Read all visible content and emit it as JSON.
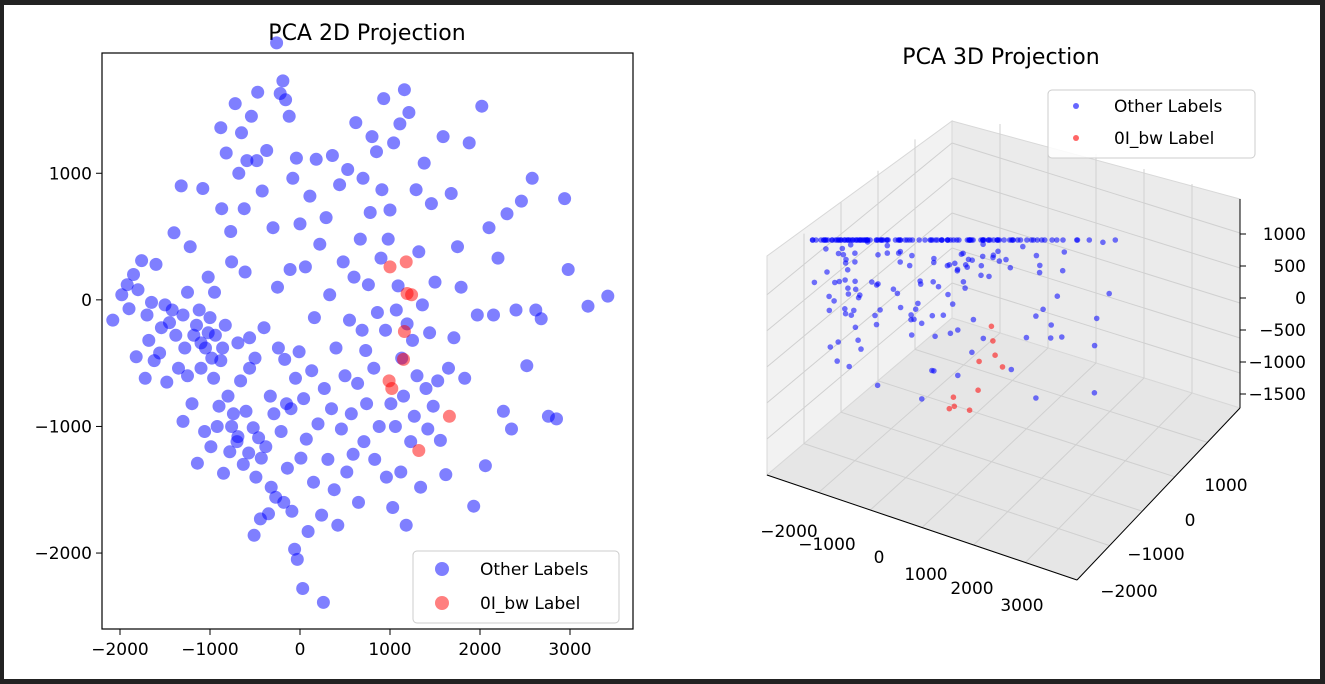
{
  "colors": {
    "other": "#0000ff",
    "label": "#ff0000"
  },
  "chart_data": [
    {
      "type": "scatter",
      "title": "PCA 2D Projection",
      "xlim": [
        -2200,
        3700
      ],
      "ylim": [
        -2600,
        1950
      ],
      "xticks": [
        -2000,
        -1000,
        0,
        1000,
        2000,
        3000
      ],
      "yticks": [
        -2000,
        -1000,
        0,
        1000
      ],
      "xtick_labels": [
        "−2000",
        "−1000",
        "0",
        "1000",
        "2000",
        "3000"
      ],
      "ytick_labels": [
        "−2000",
        "−1000",
        "0",
        "1000"
      ],
      "legend": {
        "position": "lower-right",
        "entries": [
          "Other Labels",
          "0I_bw Label"
        ]
      },
      "grid": false,
      "series": [
        {
          "name": "Other Labels",
          "color": "#0000ff",
          "alpha": 0.5,
          "points": [
            [
              -2080,
              -160
            ],
            [
              -1980,
              40
            ],
            [
              -1920,
              120
            ],
            [
              -1850,
              200
            ],
            [
              -1820,
              -450
            ],
            [
              -1800,
              80
            ],
            [
              -1760,
              310
            ],
            [
              -1720,
              -620
            ],
            [
              -1700,
              -120
            ],
            [
              -1680,
              -320
            ],
            [
              -1650,
              -20
            ],
            [
              -1620,
              -480
            ],
            [
              -1600,
              280
            ],
            [
              -1560,
              -420
            ],
            [
              -1540,
              -220
            ],
            [
              -1500,
              -40
            ],
            [
              -1480,
              -650
            ],
            [
              -1450,
              -180
            ],
            [
              -1420,
              -80
            ],
            [
              -1400,
              530
            ],
            [
              -1380,
              -280
            ],
            [
              -1350,
              -540
            ],
            [
              -1320,
              900
            ],
            [
              -1300,
              -960
            ],
            [
              -1300,
              -120
            ],
            [
              -1280,
              -380
            ],
            [
              -1250,
              60
            ],
            [
              -1220,
              420
            ],
            [
              -1200,
              -820
            ],
            [
              -1180,
              -280
            ],
            [
              -1150,
              -200
            ],
            [
              -1140,
              -1290
            ],
            [
              -1120,
              -80
            ],
            [
              -1100,
              -540
            ],
            [
              -1080,
              880
            ],
            [
              -1060,
              -1040
            ],
            [
              -1050,
              -380
            ],
            [
              -1020,
              -260
            ],
            [
              -1000,
              -140
            ],
            [
              -990,
              -1160
            ],
            [
              -980,
              -460
            ],
            [
              -960,
              -620
            ],
            [
              -940,
              -280
            ],
            [
              -920,
              -1000
            ],
            [
              -900,
              -840
            ],
            [
              -880,
              1360
            ],
            [
              -870,
              720
            ],
            [
              -860,
              -380
            ],
            [
              -850,
              -1370
            ],
            [
              -830,
              -200
            ],
            [
              -820,
              1160
            ],
            [
              -800,
              -760
            ],
            [
              -780,
              -1200
            ],
            [
              -770,
              540
            ],
            [
              -760,
              -1000
            ],
            [
              -740,
              -900
            ],
            [
              -720,
              1550
            ],
            [
              -700,
              -1120
            ],
            [
              -690,
              -340
            ],
            [
              -680,
              1000
            ],
            [
              -660,
              -640
            ],
            [
              -650,
              1320
            ],
            [
              -630,
              -1300
            ],
            [
              -610,
              220
            ],
            [
              -600,
              -880
            ],
            [
              -590,
              1100
            ],
            [
              -570,
              -1210
            ],
            [
              -560,
              -540
            ],
            [
              -540,
              1450
            ],
            [
              -520,
              -1010
            ],
            [
              -510,
              -1860
            ],
            [
              -500,
              -460
            ],
            [
              -490,
              -1400
            ],
            [
              -470,
              1640
            ],
            [
              -460,
              -1090
            ],
            [
              -440,
              -1730
            ],
            [
              -430,
              -1250
            ],
            [
              -420,
              860
            ],
            [
              -400,
              -220
            ],
            [
              -380,
              -1160
            ],
            [
              -370,
              1180
            ],
            [
              -350,
              -1690
            ],
            [
              -330,
              -760
            ],
            [
              -320,
              -1480
            ],
            [
              -300,
              570
            ],
            [
              -290,
              -900
            ],
            [
              -270,
              -1560
            ],
            [
              -260,
              2030
            ],
            [
              -250,
              100
            ],
            [
              -240,
              -380
            ],
            [
              -220,
              1630
            ],
            [
              -210,
              -1040
            ],
            [
              -190,
              1730
            ],
            [
              -180,
              -1600
            ],
            [
              -170,
              -470
            ],
            [
              -160,
              1580
            ],
            [
              -150,
              -820
            ],
            [
              -140,
              -1330
            ],
            [
              -120,
              1450
            ],
            [
              -110,
              240
            ],
            [
              -100,
              -860
            ],
            [
              -90,
              -1670
            ],
            [
              -80,
              960
            ],
            [
              -60,
              -1970
            ],
            [
              -50,
              -620
            ],
            [
              -40,
              1120
            ],
            [
              -30,
              -2050
            ],
            [
              -10,
              -410
            ],
            [
              0,
              600
            ],
            [
              10,
              -1250
            ],
            [
              30,
              -2280
            ],
            [
              40,
              -780
            ],
            [
              60,
              260
            ],
            [
              70,
              -1100
            ],
            [
              90,
              -1830
            ],
            [
              110,
              820
            ],
            [
              130,
              -560
            ],
            [
              150,
              -1440
            ],
            [
              160,
              -140
            ],
            [
              180,
              1110
            ],
            [
              200,
              -980
            ],
            [
              220,
              440
            ],
            [
              240,
              -1700
            ],
            [
              260,
              -2390
            ],
            [
              270,
              -700
            ],
            [
              290,
              650
            ],
            [
              310,
              -1260
            ],
            [
              330,
              40
            ],
            [
              350,
              -860
            ],
            [
              360,
              1140
            ],
            [
              380,
              -1500
            ],
            [
              400,
              -380
            ],
            [
              420,
              -1780
            ],
            [
              440,
              910
            ],
            [
              460,
              -1020
            ],
            [
              480,
              300
            ],
            [
              500,
              -600
            ],
            [
              520,
              -1360
            ],
            [
              530,
              1030
            ],
            [
              550,
              -160
            ],
            [
              570,
              -900
            ],
            [
              590,
              -1220
            ],
            [
              600,
              180
            ],
            [
              620,
              1400
            ],
            [
              640,
              -660
            ],
            [
              650,
              -1600
            ],
            [
              670,
              480
            ],
            [
              690,
              -240
            ],
            [
              700,
              960
            ],
            [
              710,
              -1120
            ],
            [
              730,
              -400
            ],
            [
              740,
              -820
            ],
            [
              760,
              120
            ],
            [
              780,
              690
            ],
            [
              800,
              1290
            ],
            [
              820,
              -540
            ],
            [
              830,
              -1260
            ],
            [
              850,
              1170
            ],
            [
              860,
              -100
            ],
            [
              880,
              -1000
            ],
            [
              900,
              330
            ],
            [
              910,
              870
            ],
            [
              930,
              1590
            ],
            [
              950,
              -240
            ],
            [
              960,
              -1400
            ],
            [
              980,
              480
            ],
            [
              1000,
              710
            ],
            [
              1010,
              -820
            ],
            [
              1030,
              -1640
            ],
            [
              1040,
              1240
            ],
            [
              1060,
              -1000
            ],
            [
              1070,
              -80
            ],
            [
              1090,
              110
            ],
            [
              1110,
              1390
            ],
            [
              1120,
              -1360
            ],
            [
              1130,
              -460
            ],
            [
              1150,
              -760
            ],
            [
              1160,
              1660
            ],
            [
              1180,
              -1780
            ],
            [
              1190,
              -190
            ],
            [
              1210,
              1480
            ],
            [
              1230,
              -1120
            ],
            [
              1250,
              -320
            ],
            [
              1270,
              -920
            ],
            [
              1290,
              870
            ],
            [
              1300,
              -600
            ],
            [
              1320,
              380
            ],
            [
              1340,
              -1480
            ],
            [
              1360,
              -40
            ],
            [
              1380,
              1080
            ],
            [
              1400,
              -700
            ],
            [
              1420,
              -1020
            ],
            [
              1440,
              -260
            ],
            [
              1460,
              760
            ],
            [
              1480,
              -840
            ],
            [
              1500,
              140
            ],
            [
              1530,
              -640
            ],
            [
              1560,
              -1110
            ],
            [
              1590,
              1290
            ],
            [
              1620,
              -1380
            ],
            [
              1650,
              -540
            ],
            [
              1680,
              840
            ],
            [
              1710,
              -300
            ],
            [
              1750,
              420
            ],
            [
              1790,
              100
            ],
            [
              1830,
              -620
            ],
            [
              1880,
              1240
            ],
            [
              1930,
              -1630
            ],
            [
              1970,
              -120
            ],
            [
              2020,
              1530
            ],
            [
              2060,
              -1310
            ],
            [
              2100,
              570
            ],
            [
              2150,
              -120
            ],
            [
              2200,
              330
            ],
            [
              2260,
              -880
            ],
            [
              2300,
              680
            ],
            [
              2350,
              -1020
            ],
            [
              2400,
              -80
            ],
            [
              2460,
              780
            ],
            [
              2520,
              -520
            ],
            [
              2580,
              960
            ],
            [
              2620,
              -80
            ],
            [
              2680,
              -150
            ],
            [
              2760,
              -920
            ],
            [
              2850,
              -940
            ],
            [
              2940,
              800
            ],
            [
              2980,
              240
            ],
            [
              3200,
              -50
            ],
            [
              3420,
              30
            ],
            [
              -1900,
              -70
            ],
            [
              -1250,
              -600
            ],
            [
              -1100,
              -340
            ],
            [
              -1020,
              180
            ],
            [
              -950,
              60
            ],
            [
              -880,
              -480
            ],
            [
              -760,
              300
            ],
            [
              -690,
              -1080
            ],
            [
              -620,
              720
            ],
            [
              -560,
              -300
            ],
            [
              -480,
              1100
            ]
          ]
        },
        {
          "name": "0I_bw Label",
          "color": "#ff0000",
          "alpha": 0.5,
          "points": [
            [
              1000,
              260
            ],
            [
              1180,
              300
            ],
            [
              1190,
              50
            ],
            [
              1240,
              40
            ],
            [
              1160,
              -250
            ],
            [
              1150,
              -470
            ],
            [
              990,
              -640
            ],
            [
              1020,
              -700
            ],
            [
              1320,
              -1190
            ],
            [
              1660,
              -920
            ]
          ]
        }
      ]
    },
    {
      "type": "scatter",
      "title": "PCA 3D Projection",
      "xticks": [
        -2000,
        -1000,
        0,
        1000,
        2000,
        3000
      ],
      "yticks": [
        -2000,
        -1000,
        0,
        1000
      ],
      "zticks": [
        -1500,
        -1000,
        -500,
        0,
        500,
        1000
      ],
      "xtick_labels": [
        "−2000",
        "−1000",
        "0",
        "1000",
        "2000",
        "3000"
      ],
      "ytick_labels": [
        "−2000",
        "−1000",
        "0",
        "1000"
      ],
      "ztick_labels": [
        "−1500",
        "−1000",
        "−500",
        "0",
        "500",
        "1000"
      ],
      "legend": {
        "position": "upper-right",
        "entries": [
          "Other Labels",
          "0I_bw Label"
        ]
      },
      "grid": true,
      "series": [
        {
          "name": "Other Labels",
          "color": "#0000ff",
          "alpha": 0.5
        },
        {
          "name": "0I_bw Label",
          "color": "#ff0000",
          "alpha": 0.5
        }
      ]
    }
  ]
}
